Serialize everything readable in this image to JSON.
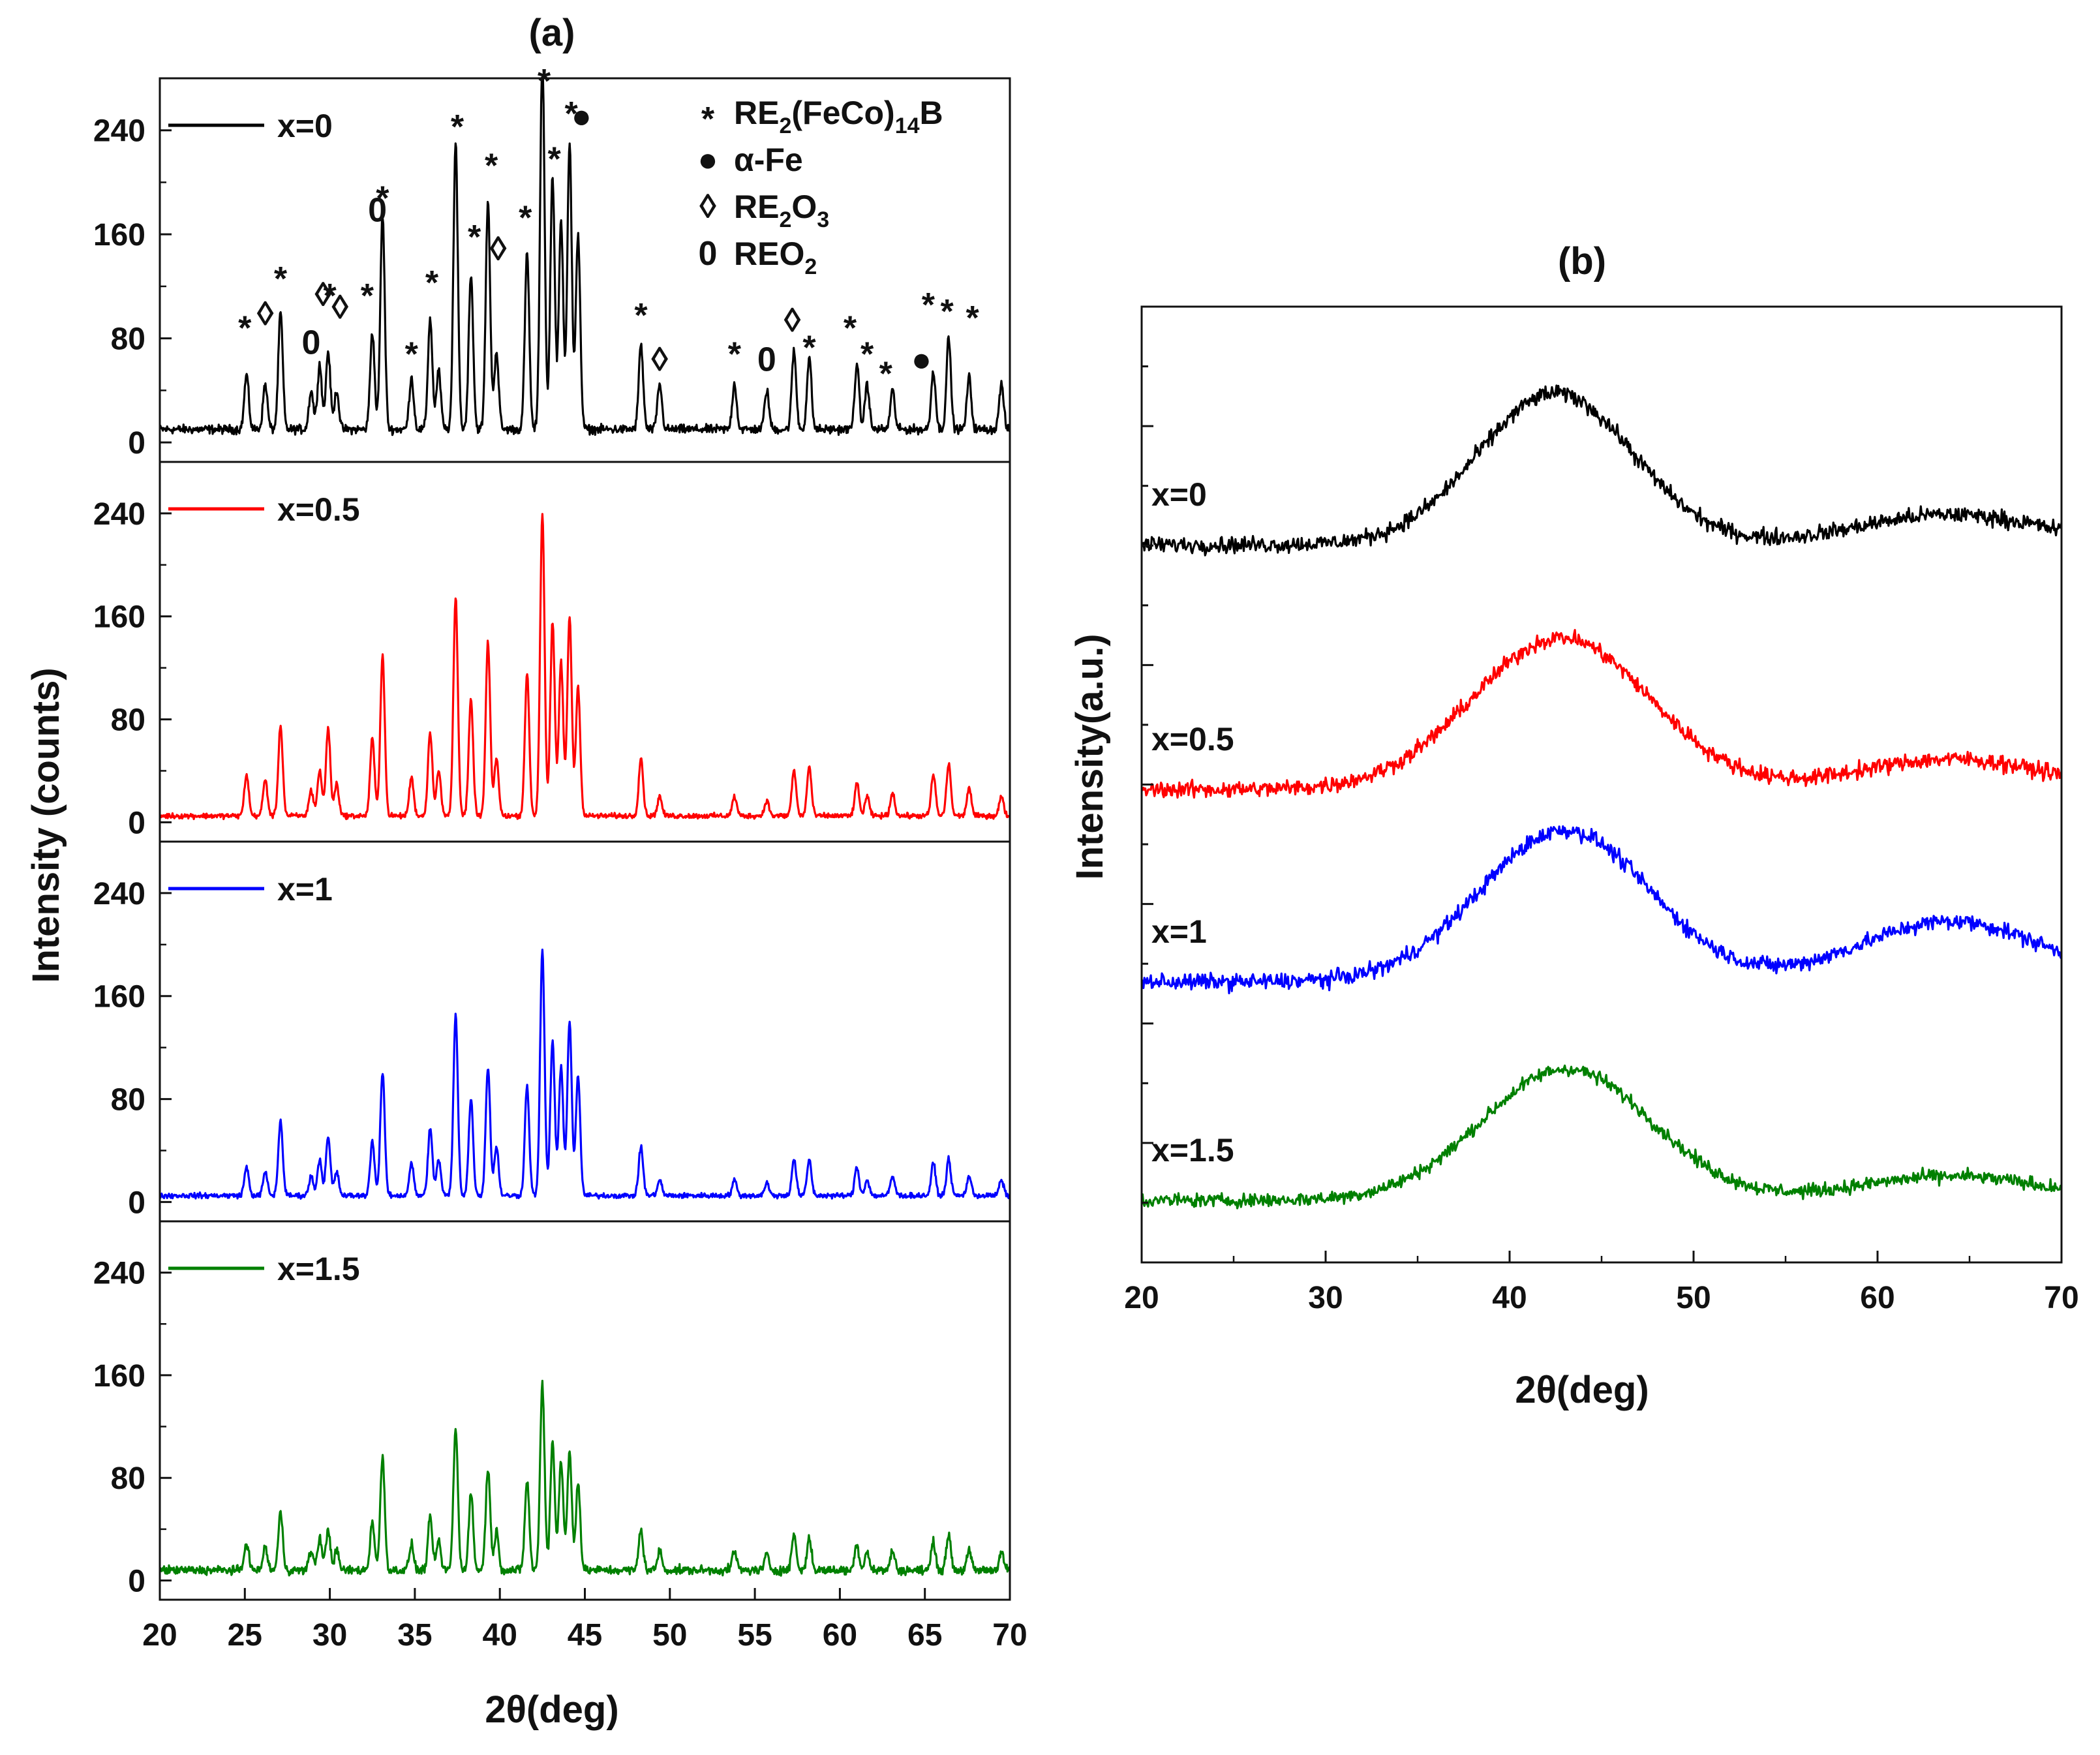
{
  "figure": {
    "title_a": "(a)",
    "title_b": "(b)"
  },
  "chart_data": [
    {
      "panel": "(a)",
      "type": "line",
      "layout": "stacked",
      "xlabel": "2θ(deg)",
      "ylabel": "Intensity (counts)",
      "xlim": [
        20,
        70
      ],
      "ylim": [
        -15,
        280
      ],
      "xticks": [
        20,
        25,
        30,
        35,
        40,
        45,
        50,
        55,
        60,
        65,
        70
      ],
      "yticks": [
        0,
        80,
        160,
        240
      ],
      "peak_positions": [
        25.1,
        26.2,
        27.1,
        28.9,
        29.4,
        29.9,
        30.4,
        32.5,
        33.1,
        34.8,
        35.9,
        36.4,
        37.4,
        38.3,
        39.3,
        39.8,
        41.6,
        42.5,
        43.1,
        43.6,
        44.1,
        44.6,
        48.3,
        49.4,
        53.8,
        55.7,
        57.3,
        58.2,
        61.0,
        61.6,
        63.1,
        65.5,
        66.4,
        67.6,
        69.5
      ],
      "series": [
        {
          "name": "x=0",
          "color": "#000000",
          "baseline": 10,
          "peak_heights": [
            42,
            35,
            90,
            30,
            50,
            60,
            30,
            75,
            165,
            40,
            85,
            45,
            220,
            120,
            175,
            60,
            135,
            290,
            195,
            160,
            220,
            150,
            65,
            35,
            35,
            30,
            60,
            55,
            50,
            35,
            30,
            45,
            70,
            40,
            35
          ],
          "noise": 5
        },
        {
          "name": "x=0.5",
          "color": "#ff0000",
          "baseline": 5,
          "peak_heights": [
            32,
            28,
            70,
            20,
            35,
            68,
            25,
            60,
            125,
            30,
            65,
            35,
            170,
            90,
            135,
            45,
            110,
            235,
            150,
            120,
            155,
            100,
            45,
            15,
            15,
            12,
            35,
            38,
            25,
            15,
            18,
            32,
            40,
            22,
            15
          ],
          "noise": 3
        },
        {
          "name": "x=1",
          "color": "#0000ff",
          "baseline": 5,
          "peak_heights": [
            22,
            18,
            58,
            15,
            28,
            45,
            18,
            42,
            95,
            25,
            52,
            28,
            140,
            75,
            100,
            38,
            85,
            190,
            120,
            100,
            135,
            92,
            38,
            12,
            12,
            10,
            28,
            28,
            22,
            12,
            15,
            25,
            28,
            15,
            12
          ],
          "noise": 3
        },
        {
          "name": "x=1.5",
          "color": "#008000",
          "baseline": 8,
          "peak_heights": [
            22,
            18,
            45,
            15,
            25,
            32,
            15,
            38,
            88,
            20,
            40,
            22,
            110,
            60,
            80,
            30,
            70,
            145,
            100,
            85,
            92,
            68,
            32,
            15,
            15,
            12,
            28,
            25,
            20,
            15,
            15,
            22,
            28,
            15,
            15
          ],
          "noise": 5
        }
      ],
      "legend": [
        {
          "symbol": "*",
          "label": "RE2(FeCo)14B",
          "base": "RE",
          "sub1": "2",
          "mid": "(FeCo)",
          "sub2": "14",
          "tail": "B"
        },
        {
          "symbol": "●",
          "label": "α-Fe"
        },
        {
          "symbol": "◊",
          "label": "RE2O3",
          "base": "RE",
          "sub1": "2",
          "mid": "O",
          "sub2": "3",
          "tail": ""
        },
        {
          "symbol": "0",
          "label": "REO2",
          "base": "REO",
          "sub1": "2",
          "mid": "",
          "sub2": "",
          "tail": ""
        }
      ],
      "annotations": [
        {
          "symbol": "*",
          "x": 25.0,
          "y": 90
        },
        {
          "symbol": "◊",
          "x": 26.2,
          "y": 90
        },
        {
          "symbol": "*",
          "x": 27.1,
          "y": 128
        },
        {
          "symbol": "0",
          "x": 28.9,
          "y": 68
        },
        {
          "symbol": "◊",
          "x": 29.6,
          "y": 105
        },
        {
          "symbol": "*",
          "x": 30.0,
          "y": 115
        },
        {
          "symbol": "◊",
          "x": 30.6,
          "y": 95
        },
        {
          "symbol": "*",
          "x": 32.2,
          "y": 115
        },
        {
          "symbol": "0",
          "x": 32.8,
          "y": 170
        },
        {
          "symbol": "*",
          "x": 33.1,
          "y": 190
        },
        {
          "symbol": "*",
          "x": 34.8,
          "y": 70
        },
        {
          "symbol": "*",
          "x": 36.0,
          "y": 125
        },
        {
          "symbol": "*",
          "x": 37.5,
          "y": 245
        },
        {
          "symbol": "*",
          "x": 38.5,
          "y": 160
        },
        {
          "symbol": "*",
          "x": 39.5,
          "y": 215
        },
        {
          "symbol": "◊",
          "x": 39.9,
          "y": 140
        },
        {
          "symbol": "*",
          "x": 41.5,
          "y": 175
        },
        {
          "symbol": "*",
          "x": 42.6,
          "y": 280
        },
        {
          "symbol": "*",
          "x": 43.2,
          "y": 220
        },
        {
          "symbol": "*",
          "x": 44.2,
          "y": 255
        },
        {
          "symbol": "●",
          "x": 44.8,
          "y": 242
        },
        {
          "symbol": "*",
          "x": 48.3,
          "y": 100
        },
        {
          "symbol": "◊",
          "x": 49.4,
          "y": 55
        },
        {
          "symbol": "*",
          "x": 53.8,
          "y": 70
        },
        {
          "symbol": "0",
          "x": 55.7,
          "y": 55
        },
        {
          "symbol": "◊",
          "x": 57.2,
          "y": 85
        },
        {
          "symbol": "*",
          "x": 58.2,
          "y": 75
        },
        {
          "symbol": "*",
          "x": 60.6,
          "y": 90
        },
        {
          "symbol": "*",
          "x": 61.6,
          "y": 70
        },
        {
          "symbol": "*",
          "x": 62.7,
          "y": 55
        },
        {
          "symbol": "●",
          "x": 64.8,
          "y": 55
        },
        {
          "symbol": "*",
          "x": 65.2,
          "y": 108
        },
        {
          "symbol": "*",
          "x": 66.3,
          "y": 103
        },
        {
          "symbol": "*",
          "x": 67.8,
          "y": 98
        }
      ]
    },
    {
      "panel": "(b)",
      "type": "line",
      "xlabel": "2θ(deg)",
      "ylabel": "Intensity(a.u.)",
      "xlim": [
        20,
        70
      ],
      "xticks": [
        20,
        30,
        40,
        50,
        60,
        70
      ],
      "y_tick_labels": false,
      "series": [
        {
          "name": "x=0",
          "color": "#000000",
          "base": 0.5,
          "amp": 0.75,
          "center": 42.5,
          "width": 4.2,
          "tail": 0.15,
          "noise": 0.06
        },
        {
          "name": "x=0.5",
          "color": "#ff0000",
          "base": 0.5,
          "amp": 0.75,
          "center": 42.8,
          "width": 4.8,
          "tail": 0.15,
          "noise": 0.06
        },
        {
          "name": "x=1",
          "color": "#0000ff",
          "base": 0.5,
          "amp": 0.75,
          "center": 43.0,
          "width": 4.6,
          "tail": 0.3,
          "noise": 0.06
        },
        {
          "name": "x=1.5",
          "color": "#008000",
          "base": 0.5,
          "amp": 0.65,
          "center": 43.1,
          "width": 4.6,
          "tail": 0.12,
          "noise": 0.05
        }
      ]
    }
  ]
}
